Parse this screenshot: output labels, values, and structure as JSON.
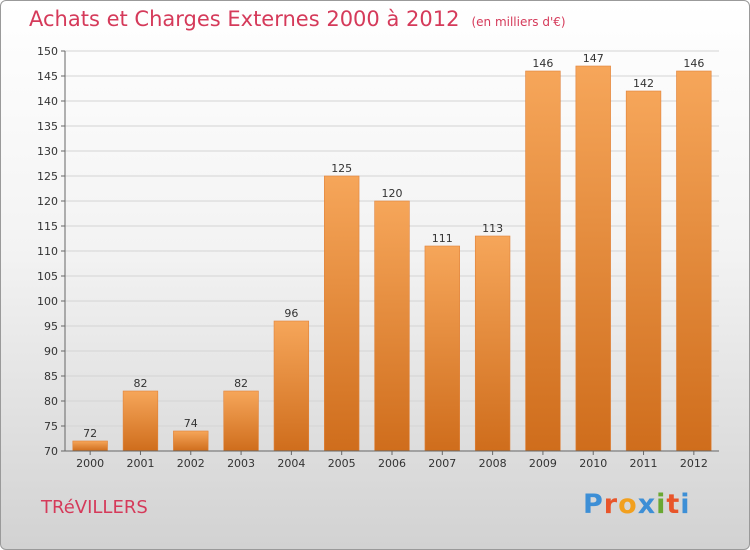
{
  "title": "Achats et Charges Externes 2000 à 2012",
  "unit": "(en milliers d'€)",
  "commune": "TRéVILLERS",
  "logo": {
    "letters": [
      {
        "ch": "P",
        "color": "#3d8fd6"
      },
      {
        "ch": "r",
        "color": "#e8552a"
      },
      {
        "ch": "o",
        "color": "#f2a01e"
      },
      {
        "ch": "x",
        "color": "#3d8fd6"
      },
      {
        "ch": "i",
        "color": "#6aa832"
      },
      {
        "ch": "t",
        "color": "#e8552a"
      },
      {
        "ch": "i",
        "color": "#3d8fd6"
      }
    ]
  },
  "colors": {
    "title": "#d53a5a",
    "bar_top": "#f6a65a",
    "bar_bottom": "#cf6d1c",
    "bar_edge": "#e0823a"
  },
  "chart_data": {
    "type": "bar",
    "categories": [
      "2000",
      "2001",
      "2002",
      "2003",
      "2004",
      "2005",
      "2006",
      "2007",
      "2008",
      "2009",
      "2010",
      "2011",
      "2012"
    ],
    "values": [
      72,
      82,
      74,
      82,
      96,
      125,
      120,
      111,
      113,
      146,
      147,
      142,
      146
    ],
    "ylim": [
      70,
      150
    ],
    "yticks": [
      70,
      75,
      80,
      85,
      90,
      95,
      100,
      105,
      110,
      115,
      120,
      125,
      130,
      135,
      140,
      145,
      150
    ],
    "grid": true,
    "legend": "none"
  }
}
